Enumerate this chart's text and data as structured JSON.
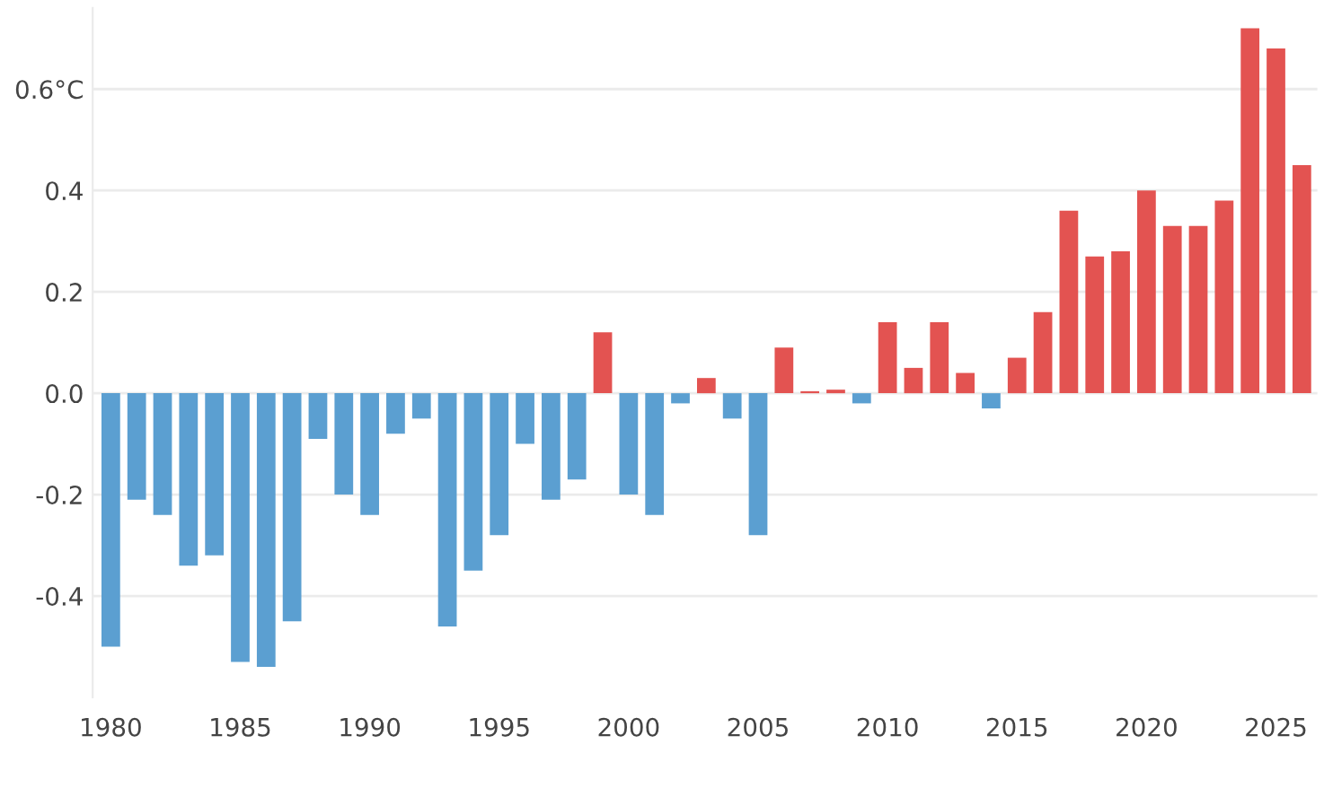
{
  "chart_data": {
    "type": "bar",
    "x": [
      1980,
      1981,
      1982,
      1983,
      1984,
      1985,
      1986,
      1987,
      1988,
      1989,
      1990,
      1991,
      1992,
      1993,
      1994,
      1995,
      1996,
      1997,
      1998,
      1999,
      2000,
      2001,
      2002,
      2003,
      2004,
      2005,
      2006,
      2007,
      2008,
      2009,
      2010,
      2011,
      2012,
      2013,
      2014,
      2015,
      2016,
      2017,
      2018,
      2019,
      2020,
      2021,
      2022,
      2023,
      2024,
      2025,
      2026
    ],
    "values": [
      -0.5,
      -0.21,
      -0.24,
      -0.34,
      -0.32,
      -0.53,
      -0.54,
      -0.45,
      -0.09,
      -0.2,
      -0.24,
      -0.08,
      -0.05,
      -0.46,
      -0.35,
      -0.28,
      -0.1,
      -0.21,
      -0.17,
      0.12,
      -0.2,
      -0.24,
      -0.02,
      0.03,
      -0.05,
      -0.28,
      0.09,
      0.004,
      0.007,
      -0.02,
      0.14,
      0.05,
      0.14,
      0.04,
      -0.03,
      0.07,
      0.16,
      0.36,
      0.27,
      0.28,
      0.4,
      0.33,
      0.33,
      0.38,
      0.72,
      0.68,
      0.45
    ],
    "colors": [
      "#5b9fd1",
      "#5b9fd1",
      "#5b9fd1",
      "#5b9fd1",
      "#5b9fd1",
      "#5b9fd1",
      "#5b9fd1",
      "#5b9fd1",
      "#5b9fd1",
      "#5b9fd1",
      "#5b9fd1",
      "#5b9fd1",
      "#5b9fd1",
      "#5b9fd1",
      "#5b9fd1",
      "#5b9fd1",
      "#5b9fd1",
      "#5b9fd1",
      "#5b9fd1",
      "#e35351",
      "#5b9fd1",
      "#5b9fd1",
      "#5b9fd1",
      "#e35351",
      "#5b9fd1",
      "#5b9fd1",
      "#e35351",
      "#e35351",
      "#e35351",
      "#5b9fd1",
      "#e35351",
      "#e35351",
      "#e35351",
      "#e35351",
      "#5b9fd1",
      "#e35351",
      "#e35351",
      "#e35351",
      "#e35351",
      "#e35351",
      "#e35351",
      "#e35351",
      "#e35351",
      "#e35351",
      "#e35351",
      "#e35351",
      "#e35351"
    ],
    "xlim": [
      1979.3,
      2026.6
    ],
    "xticks": [
      1980,
      1985,
      1990,
      1995,
      2000,
      2005,
      2010,
      2015,
      2020,
      2025
    ],
    "ylim": [
      -0.6,
      0.76
    ],
    "yticks": [
      {
        "value": -0.4,
        "label": "-0.4"
      },
      {
        "value": -0.2,
        "label": "-0.2"
      },
      {
        "value": 0,
        "label": "0.0"
      },
      {
        "value": 0.2,
        "label": "0.2"
      },
      {
        "value": 0.4,
        "label": "0.4"
      },
      {
        "value": 0.6,
        "label": "0.6°C"
      }
    ],
    "grid": "y"
  }
}
